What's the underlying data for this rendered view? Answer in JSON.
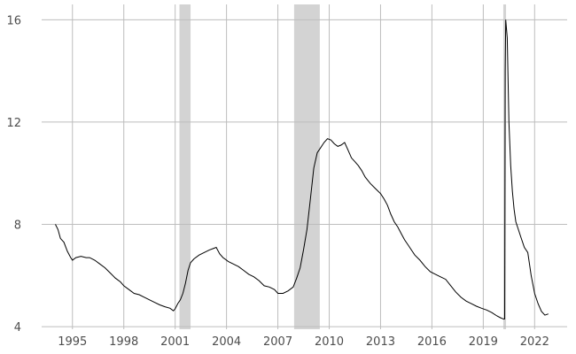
{
  "chart_data": {
    "type": "line",
    "title": "",
    "xlabel": "",
    "ylabel": "",
    "xlim": [
      1993.2,
      2023.9
    ],
    "ylim": [
      3.9,
      16.6
    ],
    "grid": true,
    "x_ticks": [
      {
        "value": 1995,
        "label": "1995"
      },
      {
        "value": 1998,
        "label": "1998"
      },
      {
        "value": 2001,
        "label": "2001"
      },
      {
        "value": 2004,
        "label": "2004"
      },
      {
        "value": 2007,
        "label": "2007"
      },
      {
        "value": 2010,
        "label": "2010"
      },
      {
        "value": 2013,
        "label": "2013"
      },
      {
        "value": 2016,
        "label": "2016"
      },
      {
        "value": 2019,
        "label": "2019"
      },
      {
        "value": 2022,
        "label": "2022"
      }
    ],
    "y_ticks": [
      {
        "value": 4,
        "label": "4"
      },
      {
        "value": 8,
        "label": "8"
      },
      {
        "value": 12,
        "label": "12"
      },
      {
        "value": 16,
        "label": "16"
      }
    ],
    "recessions": [
      {
        "start": 2001.25,
        "end": 2001.9
      },
      {
        "start": 2007.95,
        "end": 2009.45
      },
      {
        "start": 2020.17,
        "end": 2020.33
      }
    ],
    "series": [
      {
        "color": "#000000",
        "points": [
          [
            1994.0,
            8.0
          ],
          [
            1994.15,
            7.8
          ],
          [
            1994.3,
            7.45
          ],
          [
            1994.5,
            7.3
          ],
          [
            1994.7,
            6.95
          ],
          [
            1994.9,
            6.7
          ],
          [
            1995.0,
            6.6
          ],
          [
            1995.2,
            6.7
          ],
          [
            1995.5,
            6.75
          ],
          [
            1995.8,
            6.7
          ],
          [
            1996.0,
            6.7
          ],
          [
            1996.3,
            6.6
          ],
          [
            1996.6,
            6.45
          ],
          [
            1996.9,
            6.3
          ],
          [
            1997.2,
            6.1
          ],
          [
            1997.5,
            5.9
          ],
          [
            1997.8,
            5.75
          ],
          [
            1998.0,
            5.6
          ],
          [
            1998.3,
            5.45
          ],
          [
            1998.6,
            5.3
          ],
          [
            1998.9,
            5.25
          ],
          [
            1999.2,
            5.15
          ],
          [
            1999.5,
            5.05
          ],
          [
            1999.8,
            4.95
          ],
          [
            2000.1,
            4.85
          ],
          [
            2000.4,
            4.78
          ],
          [
            2000.7,
            4.72
          ],
          [
            2000.9,
            4.62
          ],
          [
            2001.0,
            4.7
          ],
          [
            2001.15,
            4.9
          ],
          [
            2001.3,
            5.05
          ],
          [
            2001.45,
            5.3
          ],
          [
            2001.6,
            5.7
          ],
          [
            2001.75,
            6.2
          ],
          [
            2001.9,
            6.5
          ],
          [
            2002.1,
            6.65
          ],
          [
            2002.4,
            6.8
          ],
          [
            2002.7,
            6.9
          ],
          [
            2003.0,
            7.0
          ],
          [
            2003.2,
            7.05
          ],
          [
            2003.4,
            7.1
          ],
          [
            2003.6,
            6.85
          ],
          [
            2003.8,
            6.7
          ],
          [
            2004.1,
            6.55
          ],
          [
            2004.4,
            6.45
          ],
          [
            2004.7,
            6.35
          ],
          [
            2005.0,
            6.2
          ],
          [
            2005.3,
            6.05
          ],
          [
            2005.6,
            5.95
          ],
          [
            2005.9,
            5.8
          ],
          [
            2006.2,
            5.6
          ],
          [
            2006.5,
            5.55
          ],
          [
            2006.8,
            5.45
          ],
          [
            2007.0,
            5.3
          ],
          [
            2007.3,
            5.3
          ],
          [
            2007.6,
            5.4
          ],
          [
            2007.9,
            5.55
          ],
          [
            2008.1,
            5.9
          ],
          [
            2008.3,
            6.3
          ],
          [
            2008.5,
            7.0
          ],
          [
            2008.7,
            7.8
          ],
          [
            2008.9,
            9.0
          ],
          [
            2009.1,
            10.2
          ],
          [
            2009.3,
            10.8
          ],
          [
            2009.5,
            11.0
          ],
          [
            2009.7,
            11.2
          ],
          [
            2009.9,
            11.35
          ],
          [
            2010.1,
            11.3
          ],
          [
            2010.3,
            11.15
          ],
          [
            2010.5,
            11.05
          ],
          [
            2010.7,
            11.1
          ],
          [
            2010.9,
            11.2
          ],
          [
            2011.1,
            10.9
          ],
          [
            2011.3,
            10.6
          ],
          [
            2011.5,
            10.45
          ],
          [
            2011.7,
            10.3
          ],
          [
            2011.9,
            10.1
          ],
          [
            2012.1,
            9.85
          ],
          [
            2012.4,
            9.6
          ],
          [
            2012.7,
            9.4
          ],
          [
            2013.0,
            9.2
          ],
          [
            2013.2,
            9.0
          ],
          [
            2013.4,
            8.75
          ],
          [
            2013.6,
            8.4
          ],
          [
            2013.8,
            8.1
          ],
          [
            2014.0,
            7.9
          ],
          [
            2014.2,
            7.65
          ],
          [
            2014.4,
            7.4
          ],
          [
            2014.6,
            7.2
          ],
          [
            2014.8,
            7.0
          ],
          [
            2015.0,
            6.8
          ],
          [
            2015.3,
            6.6
          ],
          [
            2015.6,
            6.35
          ],
          [
            2015.9,
            6.15
          ],
          [
            2016.2,
            6.05
          ],
          [
            2016.5,
            5.95
          ],
          [
            2016.8,
            5.85
          ],
          [
            2017.1,
            5.6
          ],
          [
            2017.4,
            5.35
          ],
          [
            2017.7,
            5.15
          ],
          [
            2018.0,
            5.0
          ],
          [
            2018.3,
            4.9
          ],
          [
            2018.6,
            4.8
          ],
          [
            2018.9,
            4.72
          ],
          [
            2019.2,
            4.65
          ],
          [
            2019.5,
            4.55
          ],
          [
            2019.8,
            4.42
          ],
          [
            2020.0,
            4.35
          ],
          [
            2020.17,
            4.3
          ],
          [
            2020.25,
            4.3
          ],
          [
            2020.28,
            14.0
          ],
          [
            2020.31,
            16.0
          ],
          [
            2020.4,
            15.3
          ],
          [
            2020.5,
            12.0
          ],
          [
            2020.6,
            10.3
          ],
          [
            2020.7,
            9.3
          ],
          [
            2020.8,
            8.6
          ],
          [
            2020.9,
            8.1
          ],
          [
            2021.0,
            7.9
          ],
          [
            2021.2,
            7.5
          ],
          [
            2021.4,
            7.1
          ],
          [
            2021.6,
            6.9
          ],
          [
            2021.8,
            6.0
          ],
          [
            2022.0,
            5.3
          ],
          [
            2022.2,
            4.9
          ],
          [
            2022.4,
            4.6
          ],
          [
            2022.6,
            4.45
          ],
          [
            2022.8,
            4.5
          ]
        ]
      }
    ]
  }
}
